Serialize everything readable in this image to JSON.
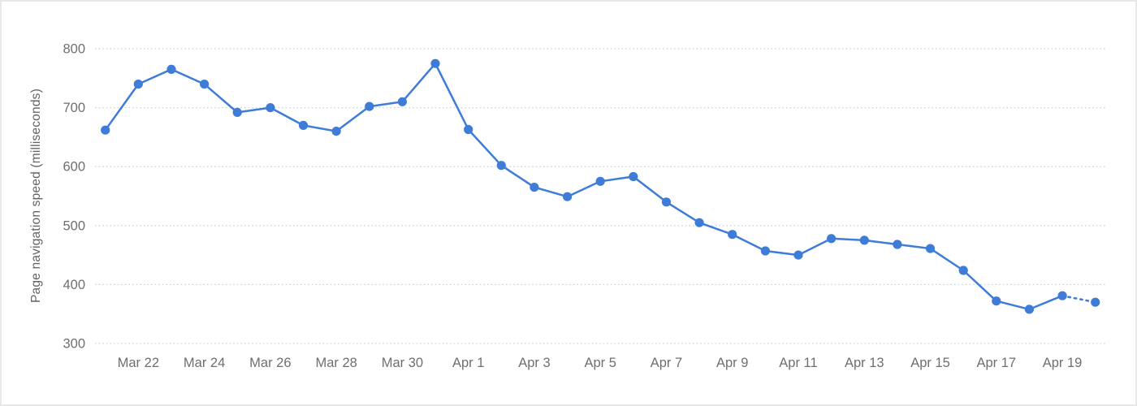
{
  "chart_data": {
    "type": "line",
    "title": "",
    "xlabel": "",
    "ylabel": "Page navigation speed (milliseconds)",
    "x": [
      "Mar 21",
      "Mar 22",
      "Mar 23",
      "Mar 24",
      "Mar 25",
      "Mar 26",
      "Mar 27",
      "Mar 28",
      "Mar 29",
      "Mar 30",
      "Mar 31",
      "Apr 1",
      "Apr 2",
      "Apr 3",
      "Apr 4",
      "Apr 5",
      "Apr 6",
      "Apr 7",
      "Apr 8",
      "Apr 9",
      "Apr 10",
      "Apr 11",
      "Apr 12",
      "Apr 13",
      "Apr 14",
      "Apr 15",
      "Apr 16",
      "Apr 17",
      "Apr 18",
      "Apr 19",
      "Apr 20"
    ],
    "series": [
      {
        "name": "Page navigation speed",
        "values": [
          662,
          740,
          765,
          740,
          692,
          700,
          670,
          660,
          702,
          710,
          775,
          663,
          602,
          565,
          549,
          575,
          583,
          540,
          505,
          485,
          457,
          450,
          478,
          475,
          468,
          461,
          424,
          372,
          358,
          381,
          370
        ]
      }
    ],
    "ylim": [
      300,
      800
    ],
    "yticks": [
      300,
      400,
      500,
      600,
      700,
      800
    ],
    "xtick_labels": [
      "Mar 22",
      "Mar 24",
      "Mar 26",
      "Mar 28",
      "Mar 30",
      "Apr 1",
      "Apr 3",
      "Apr 5",
      "Apr 7",
      "Apr 9",
      "Apr 11",
      "Apr 13",
      "Apr 15",
      "Apr 17",
      "Apr 19"
    ],
    "grid": "horizontal-dotted",
    "legend": "none",
    "last_segment_style": "dotted",
    "marker": "circle",
    "colors": {
      "line": "#3e7cd8",
      "marker": "#3e7cd8",
      "grid": "#ccd4db",
      "tick_text": "#6f6f6f",
      "axis_title_text": "#636363",
      "border": "#e7e7e7",
      "background": "#ffffff"
    }
  }
}
